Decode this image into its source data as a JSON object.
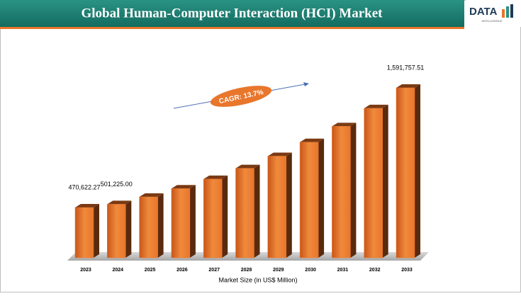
{
  "chart_data": {
    "type": "bar",
    "title": "Global Human-Computer Interaction (HCI)  Market",
    "logo": {
      "name": "DATA",
      "tagline": "INTELLIGENCE"
    },
    "annotation": "CAGR: 13.7%",
    "x_label": "Market Size (in US$ Million)",
    "categories": [
      "2023",
      "2024",
      "2025",
      "2026",
      "2027",
      "2028",
      "2029",
      "2030",
      "2031",
      "2032",
      "2033"
    ],
    "values": [
      470622.27,
      501225.0,
      570000,
      648000,
      737000,
      838000,
      952000,
      1083000,
      1231000,
      1400000,
      1591757.51
    ],
    "value_labels": [
      "470,622.27",
      "501,225.00",
      null,
      null,
      null,
      null,
      null,
      null,
      null,
      null,
      "1,591,757.51"
    ],
    "color": "#e8762b"
  }
}
